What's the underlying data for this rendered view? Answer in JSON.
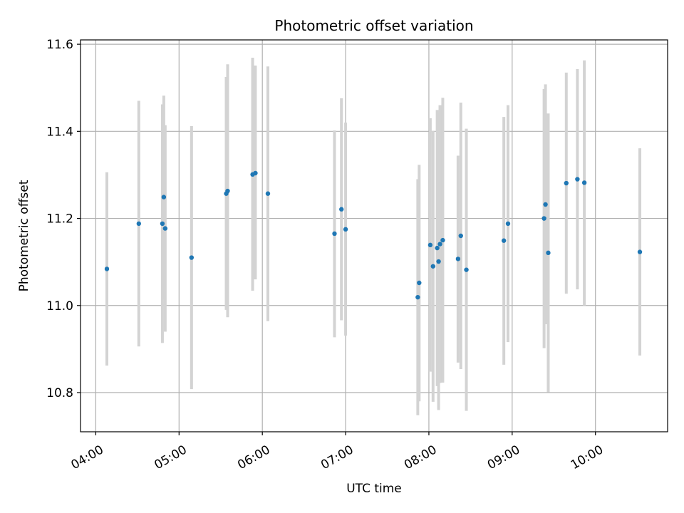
{
  "chart_data": {
    "type": "scatter",
    "title": "Photometric offset variation",
    "xlabel": "UTC time",
    "ylabel": "Photometric offset",
    "xlim": [
      "03:49",
      "10:52"
    ],
    "ylim": [
      10.71,
      11.61
    ],
    "xticks": [
      "04:00",
      "05:00",
      "06:00",
      "07:00",
      "08:00",
      "09:00",
      "10:00"
    ],
    "yticks": [
      "10.8",
      "11.0",
      "11.2",
      "11.4",
      "11.6"
    ],
    "grid": true,
    "legend": "none",
    "colors": {
      "marker": "#1f77b4",
      "errorbar": "#d3d3d3",
      "grid": "#b0b0b0"
    },
    "series": [
      {
        "points": [
          {
            "x": "04:08",
            "y": 11.084,
            "ylow": 10.862,
            "yhigh": 11.306
          },
          {
            "x": "04:31",
            "y": 11.188,
            "ylow": 10.906,
            "yhigh": 11.47
          },
          {
            "x": "04:48",
            "y": 11.188,
            "ylow": 10.914,
            "yhigh": 11.462
          },
          {
            "x": "04:49",
            "y": 11.249,
            "ylow": 11.015,
            "yhigh": 11.482
          },
          {
            "x": "04:50",
            "y": 11.177,
            "ylow": 10.94,
            "yhigh": 11.414
          },
          {
            "x": "05:09",
            "y": 11.11,
            "ylow": 10.808,
            "yhigh": 11.412
          },
          {
            "x": "05:34",
            "y": 11.257,
            "ylow": 10.99,
            "yhigh": 11.525
          },
          {
            "x": "05:35",
            "y": 11.263,
            "ylow": 10.973,
            "yhigh": 11.554
          },
          {
            "x": "05:53",
            "y": 11.301,
            "ylow": 11.034,
            "yhigh": 11.569
          },
          {
            "x": "05:55",
            "y": 11.304,
            "ylow": 11.06,
            "yhigh": 11.551
          },
          {
            "x": "06:04",
            "y": 11.257,
            "ylow": 10.964,
            "yhigh": 11.549
          },
          {
            "x": "06:52",
            "y": 11.165,
            "ylow": 10.927,
            "yhigh": 11.402
          },
          {
            "x": "06:57",
            "y": 11.221,
            "ylow": 10.966,
            "yhigh": 11.476
          },
          {
            "x": "07:00",
            "y": 11.175,
            "ylow": 10.931,
            "yhigh": 11.42
          },
          {
            "x": "07:52",
            "y": 11.019,
            "ylow": 10.748,
            "yhigh": 11.29
          },
          {
            "x": "07:53",
            "y": 11.052,
            "ylow": 10.78,
            "yhigh": 11.323
          },
          {
            "x": "08:01",
            "y": 11.139,
            "ylow": 10.848,
            "yhigh": 11.43
          },
          {
            "x": "08:03",
            "y": 11.09,
            "ylow": 10.779,
            "yhigh": 11.401
          },
          {
            "x": "08:06",
            "y": 11.132,
            "ylow": 10.815,
            "yhigh": 11.449
          },
          {
            "x": "08:07",
            "y": 11.101,
            "ylow": 10.76,
            "yhigh": 11.442
          },
          {
            "x": "08:08",
            "y": 11.141,
            "ylow": 10.822,
            "yhigh": 11.46
          },
          {
            "x": "08:10",
            "y": 11.15,
            "ylow": 10.823,
            "yhigh": 11.477
          },
          {
            "x": "08:21",
            "y": 11.107,
            "ylow": 10.869,
            "yhigh": 11.344
          },
          {
            "x": "08:23",
            "y": 11.16,
            "ylow": 10.854,
            "yhigh": 11.466
          },
          {
            "x": "08:27",
            "y": 11.082,
            "ylow": 10.758,
            "yhigh": 11.406
          },
          {
            "x": "08:54",
            "y": 11.149,
            "ylow": 10.864,
            "yhigh": 11.433
          },
          {
            "x": "08:57",
            "y": 11.188,
            "ylow": 10.916,
            "yhigh": 11.46
          },
          {
            "x": "09:23",
            "y": 11.2,
            "ylow": 10.902,
            "yhigh": 11.497
          },
          {
            "x": "09:24",
            "y": 11.232,
            "ylow": 10.957,
            "yhigh": 11.508
          },
          {
            "x": "09:26",
            "y": 11.121,
            "ylow": 10.801,
            "yhigh": 11.441
          },
          {
            "x": "09:39",
            "y": 11.281,
            "ylow": 11.027,
            "yhigh": 11.535
          },
          {
            "x": "09:47",
            "y": 11.29,
            "ylow": 11.037,
            "yhigh": 11.543
          },
          {
            "x": "09:52",
            "y": 11.282,
            "ylow": 11.0,
            "yhigh": 11.563
          },
          {
            "x": "10:32",
            "y": 11.123,
            "ylow": 10.885,
            "yhigh": 11.361
          }
        ]
      }
    ]
  }
}
